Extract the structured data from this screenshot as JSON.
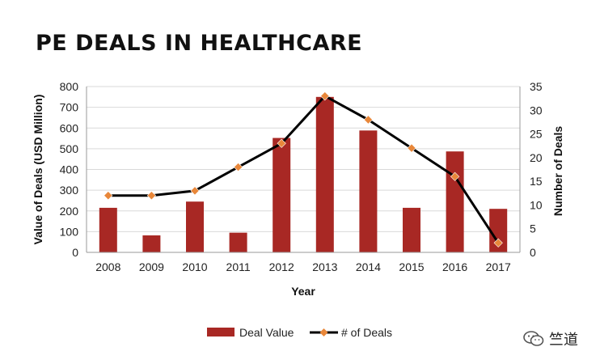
{
  "chart_data": {
    "type": "bar",
    "title": "PE DEALS IN HEALTHCARE",
    "categories": [
      "2008",
      "2009",
      "2010",
      "2011",
      "2012",
      "2013",
      "2014",
      "2015",
      "2016",
      "2017"
    ],
    "series": [
      {
        "name": "Deal Value",
        "type": "bar",
        "axis": "left",
        "color": "#a82824",
        "values": [
          215,
          82,
          245,
          95,
          552,
          750,
          588,
          215,
          487,
          210
        ]
      },
      {
        "name": "# of Deals",
        "type": "line",
        "axis": "right",
        "color": "#000000",
        "marker_color": "#e8873a",
        "values": [
          12,
          12,
          13,
          18,
          23,
          33,
          28,
          22,
          16,
          2
        ]
      }
    ],
    "xlabel": "Year",
    "ylabel": "Value of Deals (USD Million)",
    "y2label": "Number of Deals",
    "ylim": [
      0,
      800
    ],
    "y2lim": [
      0,
      35
    ],
    "yticks": [
      "0",
      "100",
      "200",
      "300",
      "400",
      "500",
      "600",
      "700",
      "800"
    ],
    "y2ticks": [
      "0",
      "5",
      "10",
      "15",
      "20",
      "25",
      "30",
      "35"
    ],
    "legend_position": "bottom"
  },
  "watermark": {
    "text": "竺道",
    "icon": "wechat-icon"
  }
}
